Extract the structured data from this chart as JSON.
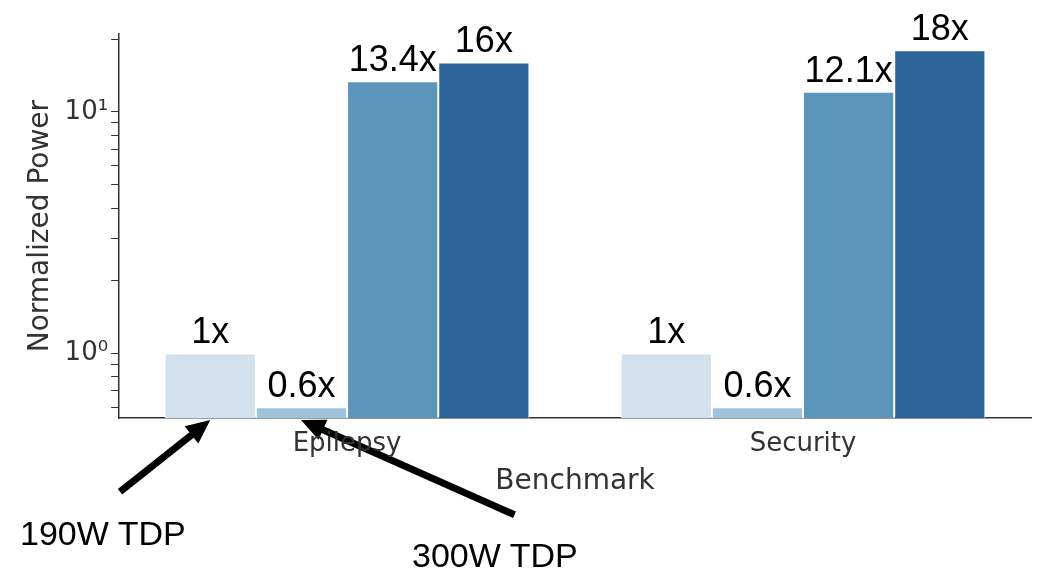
{
  "chart_data": {
    "type": "bar",
    "xlabel": "Benchmark",
    "ylabel": "Normalized Power",
    "categories": [
      "Epilepsy",
      "Security"
    ],
    "series": [
      {
        "color": "#d3e0ee",
        "values": [
          1,
          1
        ],
        "value_labels": [
          "1x",
          "1x"
        ]
      },
      {
        "color": "#9ec4dc",
        "values": [
          0.6,
          0.6
        ],
        "value_labels": [
          "0.6x",
          "0.6x"
        ]
      },
      {
        "color": "#5b95bb",
        "values": [
          13.4,
          12.1
        ],
        "value_labels": [
          "13.4x",
          "12.1x"
        ]
      },
      {
        "color": "#2b6499",
        "values": [
          16,
          18
        ],
        "value_labels": [
          "16x",
          "18x"
        ]
      }
    ],
    "log": "y",
    "ylim": [
      0.54,
      21
    ],
    "yticks": [
      {
        "value": 0.6,
        "label": null
      },
      {
        "value": 0.7,
        "label": null
      },
      {
        "value": 0.8,
        "label": null
      },
      {
        "value": 0.9,
        "label": null
      },
      {
        "value": 1,
        "label": "10⁰"
      },
      {
        "value": 2,
        "label": null
      },
      {
        "value": 3,
        "label": null
      },
      {
        "value": 4,
        "label": null
      },
      {
        "value": 5,
        "label": null
      },
      {
        "value": 6,
        "label": null
      },
      {
        "value": 7,
        "label": null
      },
      {
        "value": 8,
        "label": null
      },
      {
        "value": 9,
        "label": null
      },
      {
        "value": 10,
        "label": "10¹"
      },
      {
        "value": 20,
        "label": null
      }
    ],
    "grid": false,
    "legend": false,
    "annotations": [
      "190W TDP",
      "300W TDP"
    ]
  }
}
